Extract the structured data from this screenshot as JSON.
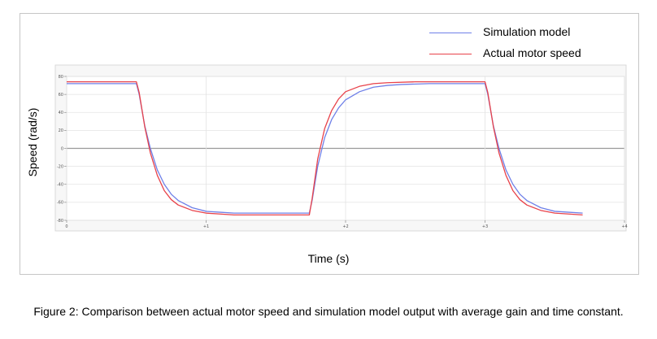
{
  "chart_data": {
    "type": "line",
    "title": "",
    "xlabel": "Time (s)",
    "ylabel": "Speed (rad/s)",
    "xlim": [
      0,
      4
    ],
    "ylim": [
      -80,
      80
    ],
    "x_ticks": [
      0,
      1,
      2,
      3,
      4
    ],
    "x_tick_labels": [
      "0",
      "+1",
      "+2",
      "+3",
      "+4"
    ],
    "y_ticks": [
      -80,
      -60,
      -40,
      -20,
      0,
      20,
      40,
      60,
      80
    ],
    "y_tick_labels": [
      "-80",
      "-60",
      "-40",
      "-20",
      "0",
      "20",
      "40",
      "60",
      "80"
    ],
    "grid": true,
    "legend_position": "top-right",
    "series": [
      {
        "name": "Simulation model",
        "color": "#6f80e8",
        "points": [
          [
            0,
            72
          ],
          [
            0.5,
            72
          ],
          [
            0.52,
            60
          ],
          [
            0.56,
            25
          ],
          [
            0.6,
            0
          ],
          [
            0.65,
            -24
          ],
          [
            0.7,
            -40
          ],
          [
            0.75,
            -51
          ],
          [
            0.8,
            -58
          ],
          [
            0.9,
            -66
          ],
          [
            1.0,
            -70
          ],
          [
            1.1,
            -71
          ],
          [
            1.2,
            -72
          ],
          [
            1.74,
            -72
          ],
          [
            1.76,
            -58
          ],
          [
            1.8,
            -20
          ],
          [
            1.85,
            12
          ],
          [
            1.9,
            32
          ],
          [
            1.95,
            45
          ],
          [
            2.0,
            54
          ],
          [
            2.1,
            63
          ],
          [
            2.2,
            68
          ],
          [
            2.3,
            70
          ],
          [
            2.4,
            71
          ],
          [
            2.6,
            72
          ],
          [
            3.0,
            72
          ],
          [
            3.02,
            60
          ],
          [
            3.06,
            25
          ],
          [
            3.1,
            0
          ],
          [
            3.15,
            -24
          ],
          [
            3.2,
            -40
          ],
          [
            3.25,
            -51
          ],
          [
            3.3,
            -58
          ],
          [
            3.4,
            -66
          ],
          [
            3.5,
            -70
          ],
          [
            3.6,
            -71
          ],
          [
            3.7,
            -72
          ]
        ]
      },
      {
        "name": "Actual motor speed",
        "color": "#e8424a",
        "points": [
          [
            0,
            74
          ],
          [
            0.5,
            74
          ],
          [
            0.52,
            62
          ],
          [
            0.56,
            24
          ],
          [
            0.6,
            -5
          ],
          [
            0.65,
            -30
          ],
          [
            0.7,
            -47
          ],
          [
            0.75,
            -57
          ],
          [
            0.8,
            -63
          ],
          [
            0.9,
            -69
          ],
          [
            1.0,
            -72
          ],
          [
            1.1,
            -73
          ],
          [
            1.2,
            -74
          ],
          [
            1.74,
            -74
          ],
          [
            1.76,
            -56
          ],
          [
            1.8,
            -12
          ],
          [
            1.85,
            22
          ],
          [
            1.9,
            42
          ],
          [
            1.95,
            55
          ],
          [
            2.0,
            63
          ],
          [
            2.1,
            69
          ],
          [
            2.2,
            72
          ],
          [
            2.3,
            73
          ],
          [
            2.5,
            74
          ],
          [
            3.0,
            74
          ],
          [
            3.02,
            62
          ],
          [
            3.06,
            24
          ],
          [
            3.1,
            -5
          ],
          [
            3.15,
            -30
          ],
          [
            3.2,
            -47
          ],
          [
            3.25,
            -57
          ],
          [
            3.3,
            -63
          ],
          [
            3.4,
            -69
          ],
          [
            3.5,
            -72
          ],
          [
            3.6,
            -73
          ],
          [
            3.7,
            -74
          ]
        ]
      }
    ]
  },
  "caption": "Figure 2: Comparison between actual motor speed and simulation model output with average gain and time constant."
}
